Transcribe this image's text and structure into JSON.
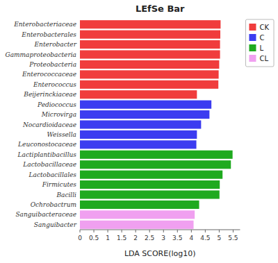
{
  "chart_data": {
    "type": "bar",
    "orientation": "horizontal",
    "stacked": true,
    "title": "LEfSe Bar",
    "xlabel": "LDA SCORE(log10)",
    "categories": [
      "Enterobacteriaceae",
      "Enterobacterales",
      "Enterobacter",
      "Gammaproteobacteria",
      "Proteobacteria",
      "Enterococcaceae",
      "Enterococcus",
      "Beijerinckiaceae",
      "Pediococcus",
      "Microvirga",
      "Nocardioidaceae",
      "Weissella",
      "Leuconostocaceae",
      "Lactiplantibacillus",
      "Lactobacillaceae",
      "Lactobacillales",
      "Firmicutes",
      "Bacilli",
      "Ochrobactrum",
      "Sanguibacteraceae",
      "Sanguibacter"
    ],
    "series": [
      {
        "name": "CK",
        "color": "#f03c3c",
        "values": [
          5.05,
          5.04,
          5.03,
          5.03,
          5.0,
          4.98,
          4.97,
          4.2,
          null,
          null,
          null,
          null,
          null,
          null,
          null,
          null,
          null,
          null,
          null,
          null,
          null
        ]
      },
      {
        "name": "C",
        "color": "#3c3cf0",
        "values": [
          null,
          null,
          null,
          null,
          null,
          null,
          null,
          null,
          4.72,
          4.65,
          4.35,
          4.2,
          4.18,
          null,
          null,
          null,
          null,
          null,
          null,
          null,
          null
        ]
      },
      {
        "name": "L",
        "color": "#1faa1f",
        "values": [
          null,
          null,
          null,
          null,
          null,
          null,
          null,
          null,
          null,
          null,
          null,
          null,
          null,
          5.48,
          5.42,
          5.12,
          5.02,
          5.01,
          4.28,
          null,
          null
        ]
      },
      {
        "name": "CL",
        "color": "#f0a0f0",
        "values": [
          null,
          null,
          null,
          null,
          null,
          null,
          null,
          null,
          null,
          null,
          null,
          null,
          null,
          null,
          null,
          null,
          null,
          null,
          null,
          4.12,
          4.08
        ]
      }
    ],
    "xlim": [
      0,
      5.75
    ],
    "xticks": [
      0,
      0.5,
      1,
      1.5,
      2,
      2.5,
      3,
      3.5,
      4,
      4.5,
      5,
      5.5
    ],
    "grid": false,
    "legend": "upper right"
  }
}
